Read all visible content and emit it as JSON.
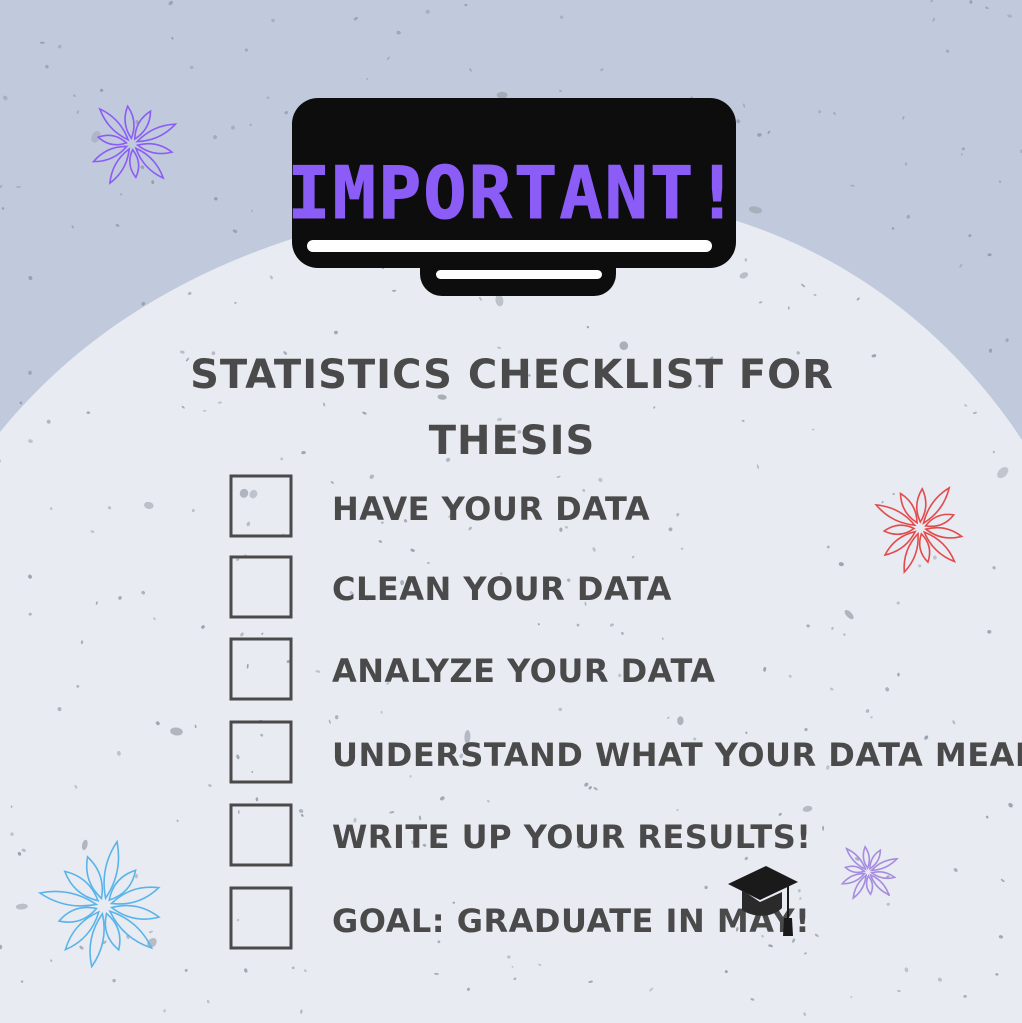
{
  "title": "IMPORTANT!",
  "heading": {
    "line1": "STATISTICS CHECKLIST FOR",
    "line2": "THESIS"
  },
  "checklist": [
    {
      "label": "HAVE YOUR DATA",
      "checked": false
    },
    {
      "label": "CLEAN YOUR DATA",
      "checked": false
    },
    {
      "label": "ANALYZE YOUR DATA",
      "checked": false
    },
    {
      "label": "UNDERSTAND WHAT YOUR DATA MEANS",
      "checked": false
    },
    {
      "label": "WRITE UP YOUR RESULTS!",
      "checked": false
    },
    {
      "label": "GOAL: GRADUATE IN MAY!",
      "checked": false
    }
  ],
  "colors": {
    "background_top": "#c0cadc",
    "background_hill": "#e8ebf2",
    "title_fill": "#8b5cf6",
    "title_box": "#0d0d0d",
    "text": "#4a4a4a",
    "burst_purple": "#8b5cf6",
    "burst_red": "#e34b4b",
    "burst_blue": "#5ab4ea",
    "burst_lavender": "#a78bdf"
  },
  "icons": [
    "burst-icon",
    "graduation-cap-icon",
    "checkbox-icon"
  ]
}
